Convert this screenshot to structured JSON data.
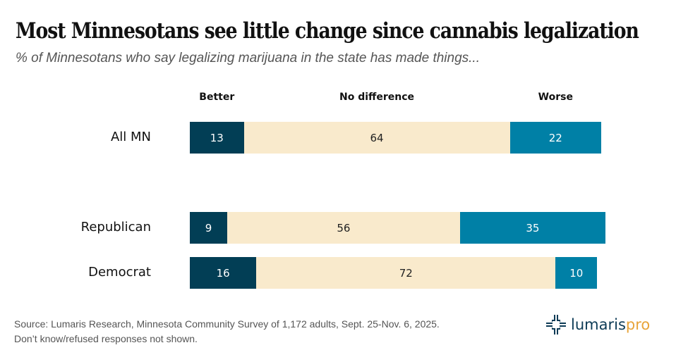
{
  "chart_data": {
    "type": "bar",
    "orientation": "horizontal-stacked",
    "title": "Most Minnesotans see little change since cannabis legalization",
    "subtitle": "% of Minnesotans who say legalizing marijuana in the state has made things...",
    "categories": [
      "All MN",
      "Republican",
      "Democrat"
    ],
    "series": [
      {
        "name": "Better",
        "color": "#023e55",
        "values": [
          13,
          9,
          16
        ]
      },
      {
        "name": "No difference",
        "color": "#f9eacc",
        "values": [
          64,
          56,
          72
        ]
      },
      {
        "name": "Worse",
        "color": "#0080a6",
        "values": [
          22,
          35,
          10
        ]
      }
    ],
    "xlabel": "",
    "ylabel": "",
    "xlim": [
      0,
      100
    ],
    "grid": false,
    "legend": "top (column headers above bars)"
  },
  "footer": {
    "source": "Source: Lumaris Research, Minnesota Community Survey of 1,172 adults, Sept. 25-Nov. 6, 2025.",
    "note": "Don’t know/refused responses not shown."
  },
  "logo": {
    "icon": "lumaris-emblem-icon",
    "text_primary": "lumaris",
    "text_accent": "pro",
    "primary_color": "#0d3b56",
    "accent_color": "#e8a43a"
  }
}
